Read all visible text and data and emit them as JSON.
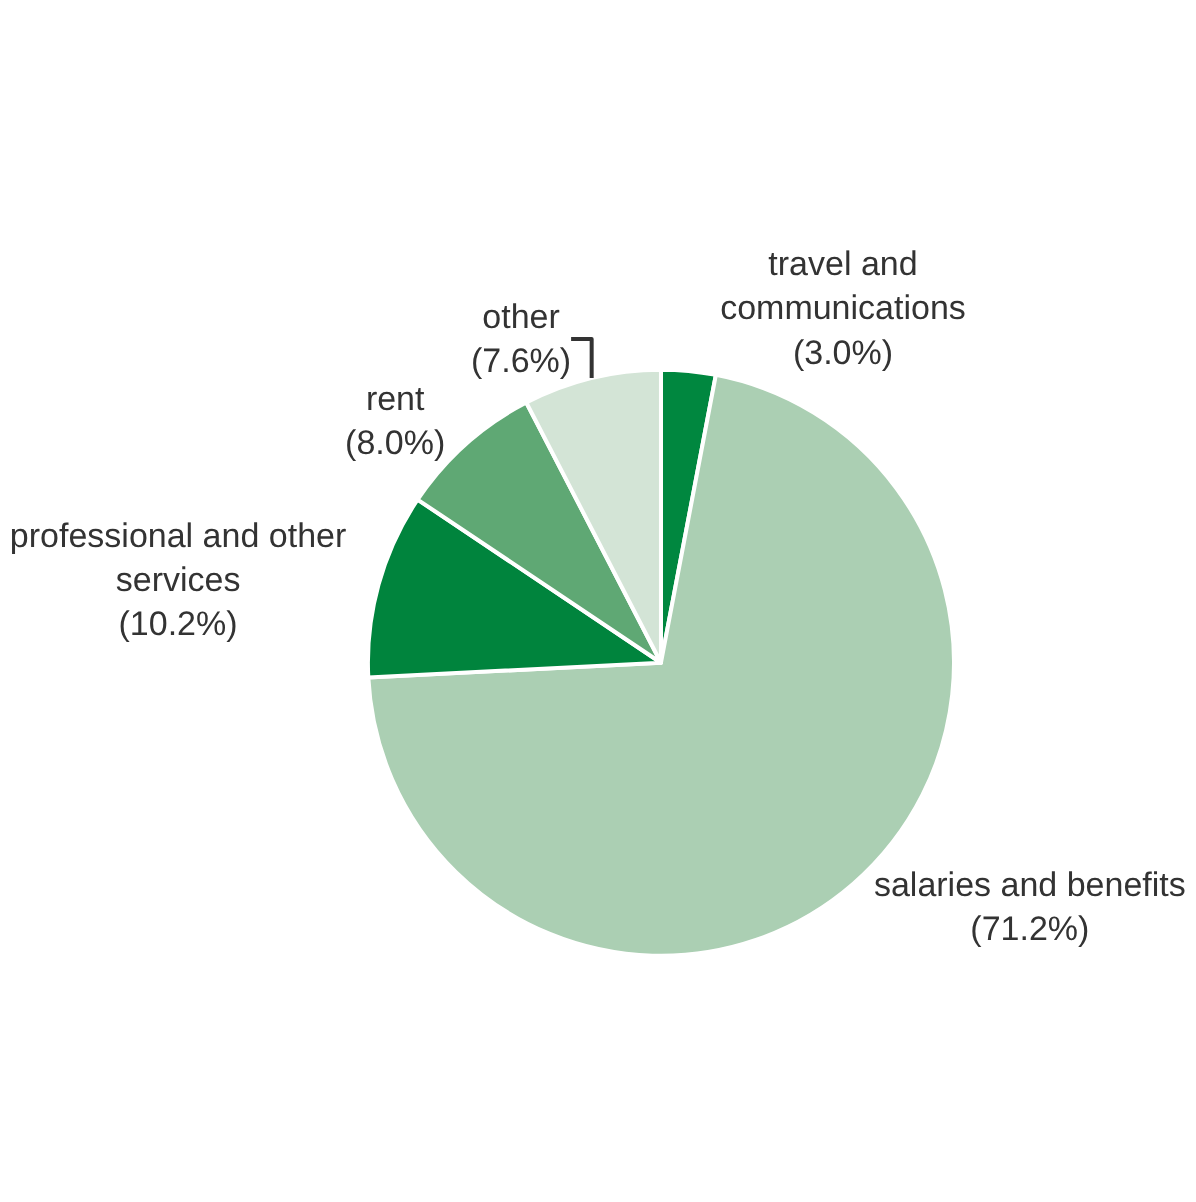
{
  "chart_data": {
    "type": "pie",
    "categories": [
      "travel and communications",
      "salaries and benefits",
      "professional and other services",
      "rent",
      "other"
    ],
    "values": [
      3.0,
      71.2,
      10.2,
      8.0,
      7.6
    ],
    "value_labels": [
      "(3.0%)",
      "(71.2%)",
      "(10.2%)",
      "(8.0%)",
      "(7.6%)"
    ],
    "colors": [
      "#00873f",
      "#abcfb3",
      "#00843d",
      "#5fa874",
      "#d3e4d6"
    ],
    "legend": false
  }
}
